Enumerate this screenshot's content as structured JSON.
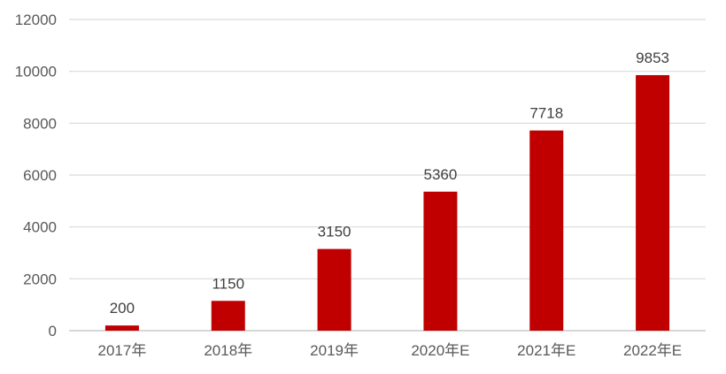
{
  "chart_data": {
    "type": "bar",
    "categories": [
      "2017年",
      "2018年",
      "2019年",
      "2020年E",
      "2021年E",
      "2022年E"
    ],
    "values": [
      200,
      1150,
      3150,
      5360,
      7718,
      9853
    ],
    "data_labels": [
      "200",
      "1150",
      "3150",
      "5360",
      "7718",
      "9853"
    ],
    "title": "",
    "xlabel": "",
    "ylabel": "",
    "ylim": [
      0,
      12000
    ],
    "yticks": [
      0,
      2000,
      4000,
      6000,
      8000,
      10000,
      12000
    ],
    "ytick_labels": [
      "0",
      "2000",
      "4000",
      "6000",
      "8000",
      "10000",
      "12000"
    ],
    "grid": true,
    "legend": "none",
    "bar_color": "#c00000"
  }
}
